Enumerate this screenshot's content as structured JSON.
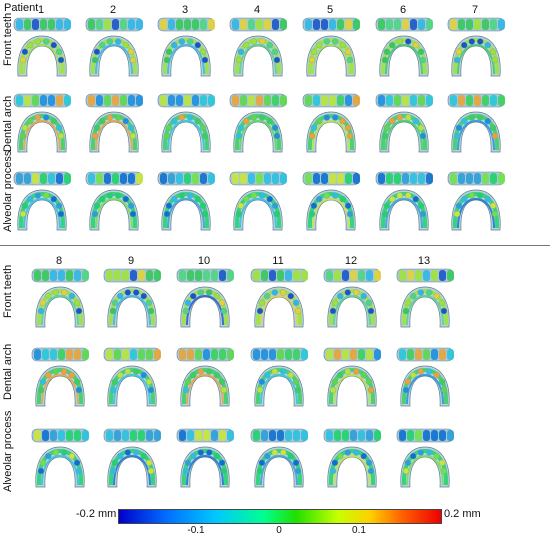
{
  "header": {
    "patient_label": "Patient"
  },
  "panels": [
    {
      "patients": [
        "1",
        "2",
        "3",
        "4",
        "5",
        "6",
        "7"
      ]
    },
    {
      "patients": [
        "8",
        "9",
        "10",
        "11",
        "12",
        "13"
      ]
    }
  ],
  "row_labels": [
    "Front teeth",
    "Dental arch",
    "Alveolar process"
  ],
  "colorbar": {
    "min_label": "-0.2 mm",
    "max_label": "0.2 mm",
    "ticks": [
      "-0.1",
      "0",
      "0.1"
    ],
    "colors": {
      "negative": "#0000cc",
      "zero": "#20e000",
      "positive": "#ee0000"
    }
  }
}
